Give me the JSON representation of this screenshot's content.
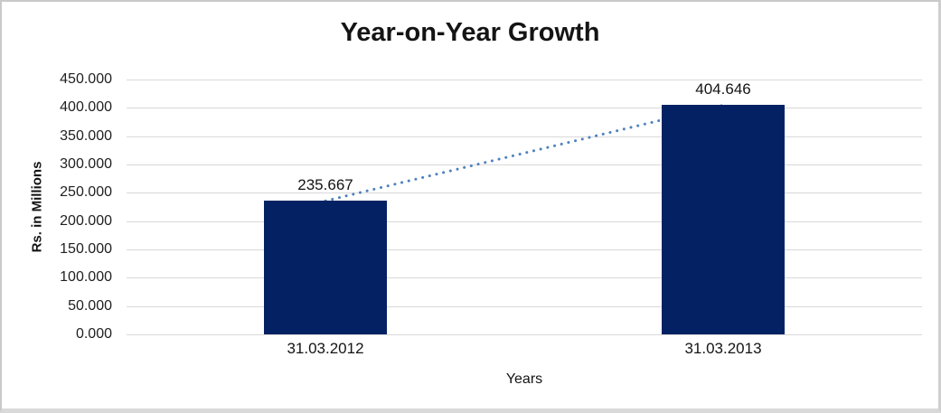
{
  "frame": {
    "background": "#ffffff",
    "border_color": "#c9c9c9"
  },
  "chart_data": {
    "type": "bar",
    "title": "Year-on-Year Growth",
    "categories": [
      "31.03.2012",
      "31.03.2013"
    ],
    "values": [
      235.667,
      404.646
    ],
    "data_labels": [
      "235.667",
      "404.646"
    ],
    "xlabel": "Years",
    "ylabel": "Rs. in Millions",
    "ylim": [
      0,
      450
    ],
    "ytick_step": 50,
    "yticks": [
      "450.000",
      "400.000",
      "350.000",
      "300.000",
      "250.000",
      "200.000",
      "150.000",
      "100.000",
      "50.000",
      "0.000"
    ],
    "grid": true,
    "legend_position": "none",
    "bar_color": "#042263",
    "gridline_color": "#d9d9d9",
    "trendline": {
      "type": "linear",
      "style": "dotted",
      "color": "#4f81bd"
    }
  }
}
